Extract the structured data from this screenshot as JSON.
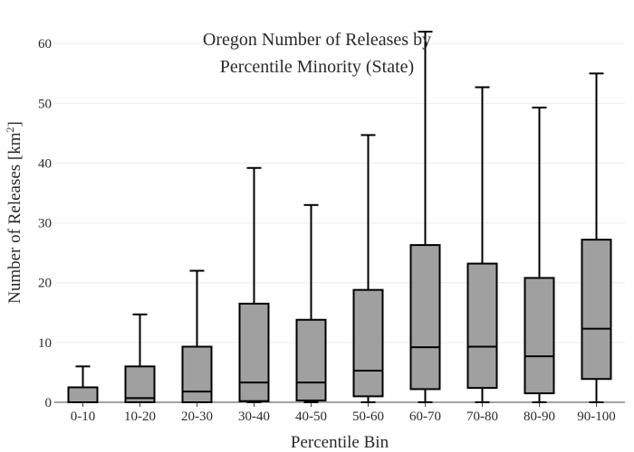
{
  "chart_data": {
    "type": "box",
    "title_lines": [
      "Oregon Number of Releases by",
      "Percentile Minority (State)"
    ],
    "xlabel": "Percentile Bin",
    "ylabel_main": "Number of Releases  [km",
    "ylabel_sup": "2",
    "ylabel_end": "]",
    "ylim": [
      0,
      62
    ],
    "yticks": [
      0,
      10,
      20,
      30,
      40,
      50,
      60
    ],
    "grid": true,
    "categories": [
      "0-10",
      "10-20",
      "20-30",
      "30-40",
      "40-50",
      "50-60",
      "60-70",
      "70-80",
      "80-90",
      "90-100"
    ],
    "boxes": [
      {
        "min": 0,
        "q1": 0,
        "median": 0,
        "q3": 2.5,
        "max": 6
      },
      {
        "min": 0,
        "q1": 0,
        "median": 0.7,
        "q3": 6,
        "max": 14.7
      },
      {
        "min": 0,
        "q1": 0,
        "median": 1.8,
        "q3": 9.3,
        "max": 22
      },
      {
        "min": 0,
        "q1": 0.2,
        "median": 3.3,
        "q3": 16.5,
        "max": 39.2
      },
      {
        "min": 0,
        "q1": 0.3,
        "median": 3.3,
        "q3": 13.8,
        "max": 33
      },
      {
        "min": 0,
        "q1": 1,
        "median": 5.3,
        "q3": 18.8,
        "max": 44.7
      },
      {
        "min": 0,
        "q1": 2.2,
        "median": 9.2,
        "q3": 26.3,
        "max": 62
      },
      {
        "min": 0,
        "q1": 2.4,
        "median": 9.3,
        "q3": 23.2,
        "max": 52.7
      },
      {
        "min": 0,
        "q1": 1.5,
        "median": 7.7,
        "q3": 20.8,
        "max": 49.3
      },
      {
        "min": 0,
        "q1": 3.9,
        "median": 12.3,
        "q3": 27.2,
        "max": 55
      }
    ],
    "box_color": "#a0a0a0",
    "line_color": "#000000",
    "grid_color": "#ececec"
  }
}
